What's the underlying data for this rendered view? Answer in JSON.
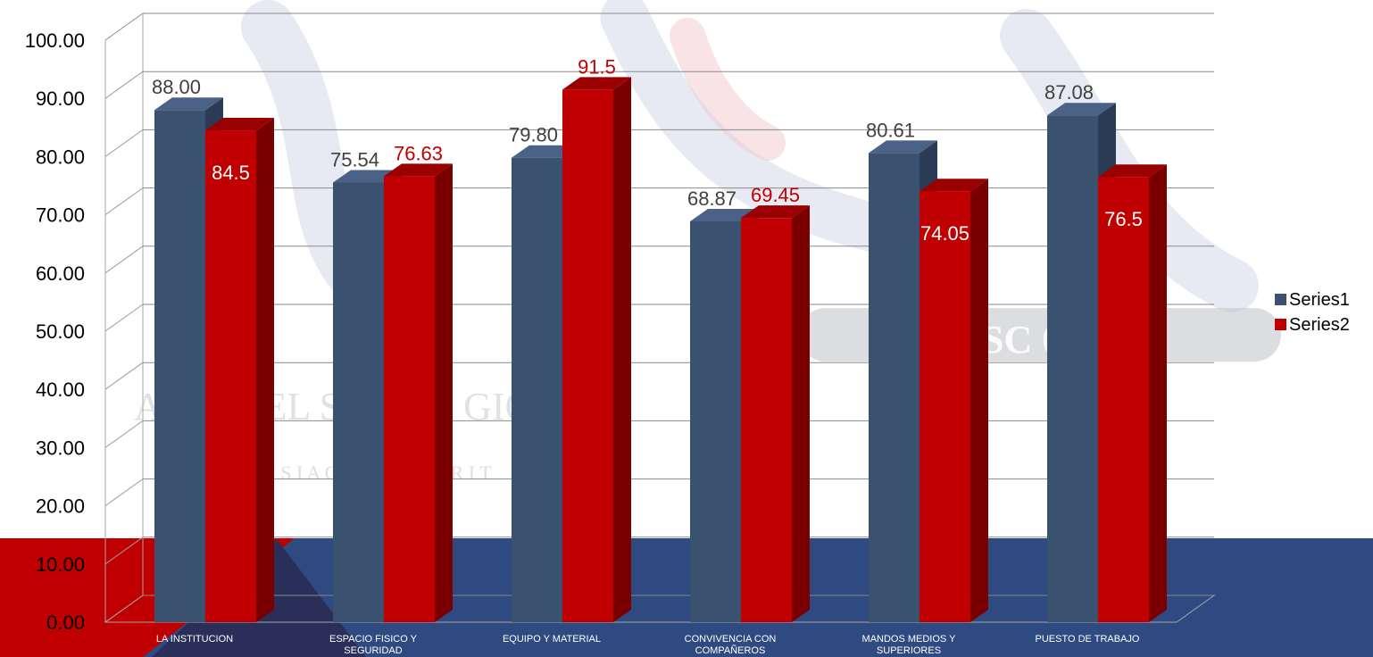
{
  "chart_data": {
    "type": "bar",
    "categories": [
      [
        "LA INSTITUCION"
      ],
      [
        "ESPACIO FISICO Y",
        "SEGURIDAD"
      ],
      [
        "EQUIPO Y MATERIAL"
      ],
      [
        "CONVIVENCIA CON",
        "COMPAÑEROS"
      ],
      [
        "MANDOS MEDIOS Y",
        "SUPERIORES"
      ],
      [
        "PUESTO DE TRABAJO"
      ]
    ],
    "series": [
      {
        "name": "Series1",
        "values": [
          88.0,
          75.54,
          79.8,
          68.87,
          80.61,
          87.08
        ],
        "labels": [
          "88.00",
          "75.54",
          "79.80",
          "68.87",
          "80.61",
          "87.08"
        ],
        "color": "#3b5170"
      },
      {
        "name": "Series2",
        "values": [
          84.5,
          76.63,
          91.5,
          69.45,
          74.05,
          76.5
        ],
        "labels": [
          "84.5",
          "76.63",
          "91.5",
          "69.45",
          "74.05",
          "76.5"
        ],
        "color": "#c00000"
      }
    ],
    "yticks": [
      "0.00",
      "10.00",
      "20.00",
      "30.00",
      "40.00",
      "50.00",
      "60.00",
      "70.00",
      "80.00",
      "90.00",
      "100.00"
    ],
    "ylim": [
      0,
      100
    ],
    "grid": true,
    "legend_position": "right",
    "style": "3d-clustered-column"
  },
  "background": {
    "watermark_lines": [
      "SC  01",
      "AL    O  P     EL    SA    LLO   GIONAL",
      "N   I     S  I     A    O    N     A     D     A  Y  A  R  I  T"
    ],
    "band_color": "#2e4a80",
    "accent_color": "#c00000"
  }
}
